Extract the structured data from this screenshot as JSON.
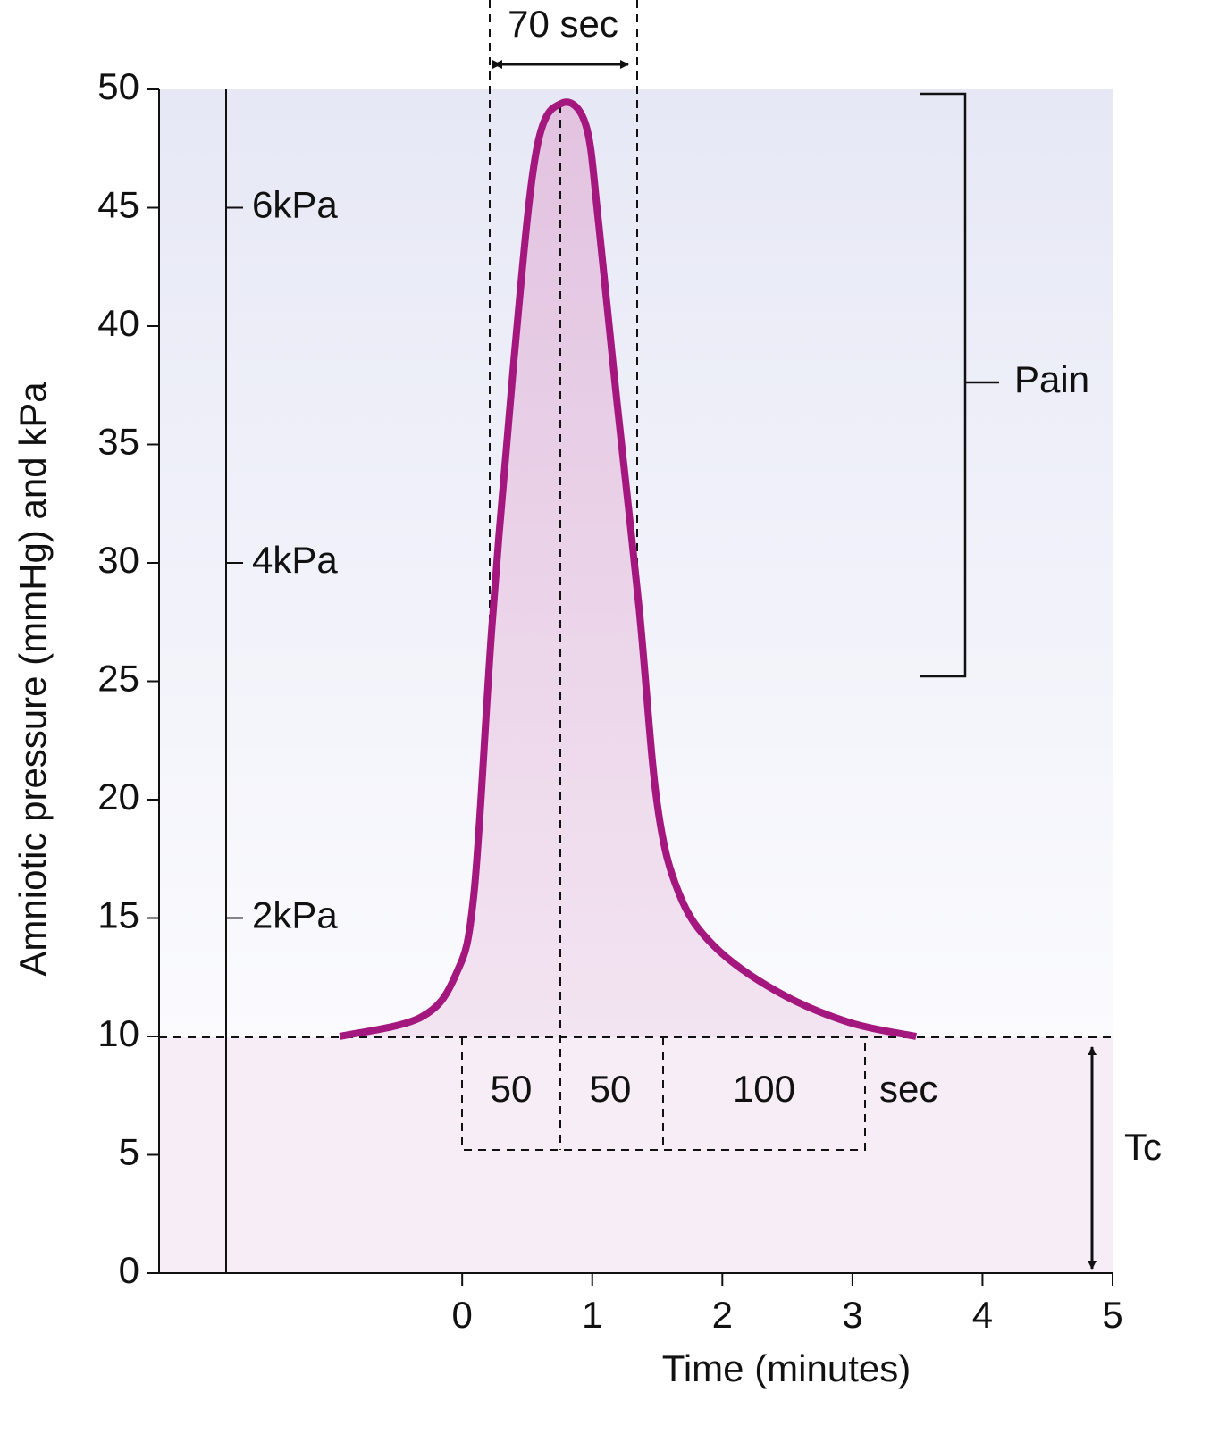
{
  "chart_data": {
    "type": "line",
    "x_label": "Time (minutes)",
    "y_label": "Amniotic pressure (mmHg) and kPa",
    "x": [
      -0.94,
      -0.32,
      -0.05,
      0.09,
      0.23,
      0.4,
      0.57,
      0.76,
      0.95,
      1.05,
      1.19,
      1.36,
      1.5,
      1.67,
      1.94,
      2.42,
      2.97,
      3.49
    ],
    "values": [
      10,
      10.8,
      12.6,
      16,
      27.4,
      38.7,
      47.4,
      49.4,
      48.5,
      44.3,
      36.8,
      28.1,
      19.8,
      16,
      13.8,
      11.9,
      10.6,
      10
    ],
    "color": "#a3177f",
    "xlim": [
      -2.33,
      5
    ],
    "xticks": [
      0,
      1,
      2,
      3,
      4,
      5
    ],
    "ylim": [
      0,
      50
    ],
    "yticks": [
      0,
      5,
      10,
      15,
      20,
      25,
      30,
      35,
      40,
      45,
      50
    ],
    "kpa_ticks": [
      {
        "value": 45,
        "label": "6kPa"
      },
      {
        "value": 30,
        "label": "4kPa"
      },
      {
        "value": 15,
        "label": "2kPa"
      }
    ],
    "annotations": {
      "duration": "70 sec",
      "pain": "Pain",
      "tone": "Tc",
      "phase_1": "50",
      "phase_2": "50",
      "phase_3": "100",
      "phase_unit": "sec"
    }
  }
}
